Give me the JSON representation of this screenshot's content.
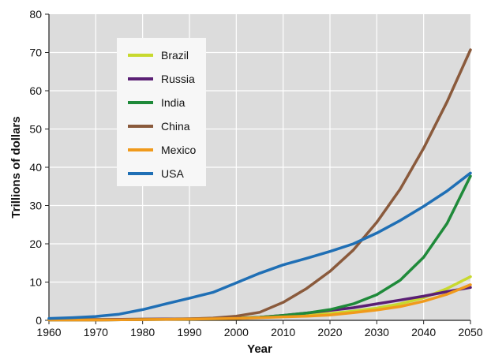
{
  "chart_data": {
    "type": "line",
    "title": "",
    "xlabel": "Year",
    "ylabel": "Trillions of dollars",
    "xlim": [
      1960,
      2050
    ],
    "ylim": [
      0,
      80
    ],
    "x_ticks": [
      "1960",
      "1970",
      "1980",
      "1990",
      "2000",
      "2010",
      "2020",
      "2030",
      "2040",
      "2050"
    ],
    "y_ticks": [
      "0",
      "10",
      "20",
      "30",
      "40",
      "50",
      "60",
      "70",
      "80"
    ],
    "grid": true,
    "legend_position": "top-left",
    "background_color": "#dcdcdc",
    "series": [
      {
        "name": "Brazil",
        "color": "#c8d92e",
        "points": [
          [
            1960,
            0.2
          ],
          [
            1970,
            0.2
          ],
          [
            1980,
            0.3
          ],
          [
            1990,
            0.4
          ],
          [
            2000,
            0.6
          ],
          [
            2005,
            0.8
          ],
          [
            2010,
            1.2
          ],
          [
            2015,
            1.5
          ],
          [
            2020,
            1.8
          ],
          [
            2025,
            2.4
          ],
          [
            2030,
            3.2
          ],
          [
            2035,
            4.3
          ],
          [
            2040,
            5.9
          ],
          [
            2045,
            8.3
          ],
          [
            2050,
            11.4
          ]
        ]
      },
      {
        "name": "Russia",
        "color": "#5a1f74",
        "points": [
          [
            1960,
            0.2
          ],
          [
            1970,
            0.2
          ],
          [
            1980,
            0.3
          ],
          [
            1990,
            0.4
          ],
          [
            2000,
            0.5
          ],
          [
            2005,
            0.8
          ],
          [
            2010,
            1.3
          ],
          [
            2015,
            1.9
          ],
          [
            2020,
            2.6
          ],
          [
            2025,
            3.3
          ],
          [
            2030,
            4.3
          ],
          [
            2035,
            5.3
          ],
          [
            2040,
            6.3
          ],
          [
            2045,
            7.5
          ],
          [
            2050,
            8.6
          ]
        ]
      },
      {
        "name": "India",
        "color": "#1f8a3a",
        "points": [
          [
            1960,
            0.1
          ],
          [
            1970,
            0.1
          ],
          [
            1980,
            0.2
          ],
          [
            1990,
            0.3
          ],
          [
            2000,
            0.5
          ],
          [
            2005,
            0.8
          ],
          [
            2010,
            1.3
          ],
          [
            2015,
            1.9
          ],
          [
            2020,
            2.8
          ],
          [
            2025,
            4.3
          ],
          [
            2030,
            6.7
          ],
          [
            2035,
            10.5
          ],
          [
            2040,
            16.5
          ],
          [
            2045,
            25.3
          ],
          [
            2050,
            37.7
          ]
        ]
      },
      {
        "name": "China",
        "color": "#8a5a3c",
        "points": [
          [
            1960,
            0.1
          ],
          [
            1970,
            0.1
          ],
          [
            1980,
            0.2
          ],
          [
            1990,
            0.4
          ],
          [
            1995,
            0.6
          ],
          [
            2000,
            1.1
          ],
          [
            2005,
            2.1
          ],
          [
            2010,
            4.7
          ],
          [
            2015,
            8.3
          ],
          [
            2020,
            12.8
          ],
          [
            2025,
            18.4
          ],
          [
            2030,
            25.6
          ],
          [
            2035,
            34.3
          ],
          [
            2040,
            45.0
          ],
          [
            2045,
            57.1
          ],
          [
            2050,
            70.7
          ]
        ]
      },
      {
        "name": "Mexico",
        "color": "#f09a1c",
        "points": [
          [
            1960,
            0.1
          ],
          [
            1970,
            0.1
          ],
          [
            1980,
            0.2
          ],
          [
            1990,
            0.3
          ],
          [
            2000,
            0.5
          ],
          [
            2005,
            0.7
          ],
          [
            2010,
            0.9
          ],
          [
            2015,
            1.1
          ],
          [
            2020,
            1.4
          ],
          [
            2025,
            2.0
          ],
          [
            2030,
            2.7
          ],
          [
            2035,
            3.6
          ],
          [
            2040,
            5.0
          ],
          [
            2045,
            6.8
          ],
          [
            2050,
            9.3
          ]
        ]
      },
      {
        "name": "USA",
        "color": "#1f6fb5",
        "points": [
          [
            1960,
            0.5
          ],
          [
            1965,
            0.7
          ],
          [
            1970,
            1.0
          ],
          [
            1975,
            1.6
          ],
          [
            1980,
            2.8
          ],
          [
            1985,
            4.3
          ],
          [
            1990,
            5.8
          ],
          [
            1995,
            7.3
          ],
          [
            2000,
            9.8
          ],
          [
            2005,
            12.3
          ],
          [
            2010,
            14.5
          ],
          [
            2015,
            16.2
          ],
          [
            2020,
            18.0
          ],
          [
            2025,
            20.0
          ],
          [
            2030,
            22.8
          ],
          [
            2035,
            26.1
          ],
          [
            2040,
            29.8
          ],
          [
            2045,
            33.8
          ],
          [
            2050,
            38.5
          ]
        ]
      }
    ]
  }
}
